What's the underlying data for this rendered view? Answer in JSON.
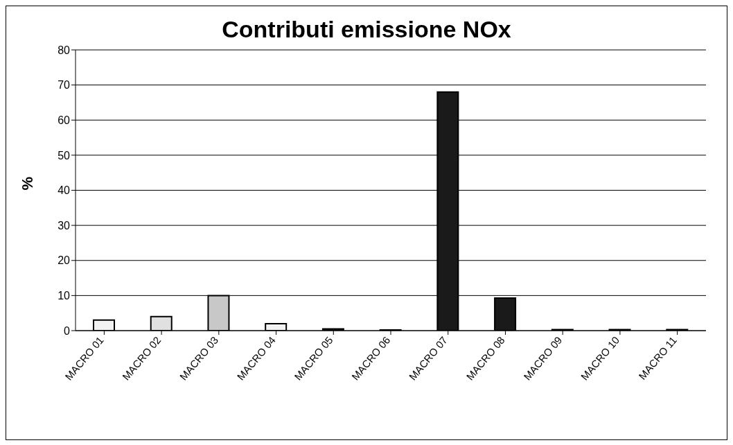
{
  "chart_data": {
    "type": "bar",
    "title": "Contributi emissione NOx",
    "ylabel": "%",
    "categories": [
      "MACRO 01",
      "MACRO 02",
      "MACRO 03",
      "MACRO 04",
      "MACRO 05",
      "MACRO 06",
      "MACRO 07",
      "MACRO 08",
      "MACRO 09",
      "MACRO 10",
      "MACRO 11"
    ],
    "values": [
      3,
      4,
      10,
      2,
      0.5,
      0.2,
      68,
      9.3,
      0.3,
      0.3,
      0.3
    ],
    "colors": [
      "#f2f2f2",
      "#e0e0e0",
      "#c8c8c8",
      "#f2f2f2",
      "#202020",
      "#202020",
      "#1a1a1a",
      "#1a1a1a",
      "#202020",
      "#202020",
      "#202020"
    ],
    "ylim": [
      0,
      80
    ],
    "yticks": [
      0,
      10,
      20,
      30,
      40,
      50,
      60,
      70,
      80
    ],
    "grid": "y",
    "legend": false
  }
}
